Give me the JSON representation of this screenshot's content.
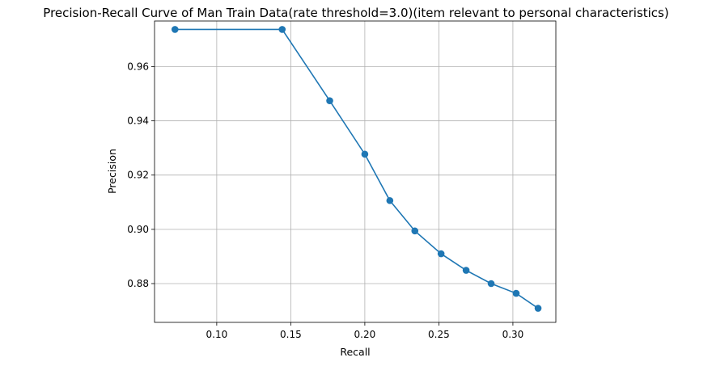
{
  "chart_data": {
    "type": "line",
    "title": "Precision-Recall Curve of Man Train Data(rate threshold=3.0)(item relevant to personal characteristics)",
    "xlabel": "Recall",
    "ylabel": "Precision",
    "xlim": [
      0.058,
      0.329
    ],
    "ylim": [
      0.8657,
      0.9768
    ],
    "xticks": [
      0.1,
      0.15,
      0.2,
      0.25,
      0.3
    ],
    "xtick_labels": [
      "0.10",
      "0.15",
      "0.20",
      "0.25",
      "0.30"
    ],
    "yticks": [
      0.88,
      0.9,
      0.92,
      0.94,
      0.96
    ],
    "ytick_labels": [
      "0.88",
      "0.90",
      "0.92",
      "0.94",
      "0.96"
    ],
    "grid": true,
    "marker": "circle",
    "color": "#1f77b4",
    "series": [
      {
        "x": [
          0.0718,
          0.1442,
          0.1763,
          0.2,
          0.2169,
          0.2338,
          0.2515,
          0.2684,
          0.2853,
          0.3022,
          0.317
        ],
        "y": [
          0.9737,
          0.9737,
          0.9474,
          0.9277,
          0.9106,
          0.8994,
          0.891,
          0.8849,
          0.88,
          0.8764,
          0.8709
        ]
      }
    ]
  }
}
